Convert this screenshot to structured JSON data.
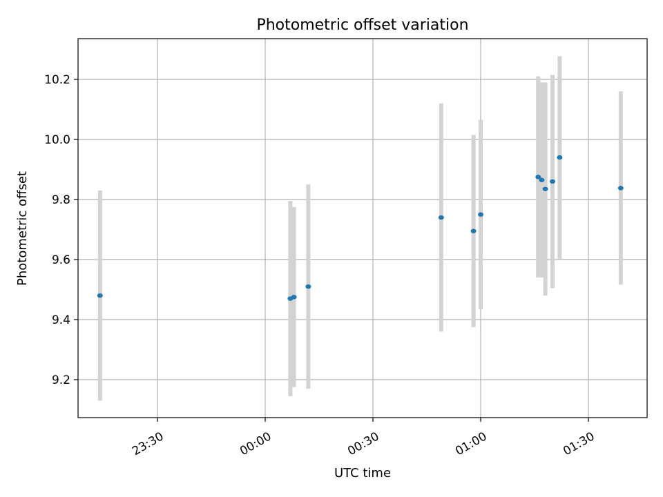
{
  "chart_data": {
    "type": "scatter",
    "title": "Photometric offset variation",
    "xlabel": "UTC time",
    "ylabel": "Photometric offset",
    "x_axis_kind": "time",
    "x_tick_labels": [
      "23:30",
      "00:00",
      "00:30",
      "01:00",
      "01:30"
    ],
    "y_tick_labels": [
      "9.2",
      "9.4",
      "9.6",
      "9.8",
      "10.0",
      "10.2"
    ],
    "grid": true,
    "colors": {
      "point": "#1f77b4",
      "errorbar": "#d3d3d3",
      "grid": "#b0b0b0"
    },
    "series": [
      {
        "points": [
          {
            "x": "23:14",
            "y": 9.48,
            "yerr": 0.35
          },
          {
            "x": "00:07",
            "y": 9.47,
            "yerr": 0.325
          },
          {
            "x": "00:08",
            "y": 9.475,
            "yerr": 0.3
          },
          {
            "x": "00:12",
            "y": 9.51,
            "yerr": 0.34
          },
          {
            "x": "00:49",
            "y": 9.74,
            "yerr": 0.38
          },
          {
            "x": "00:58",
            "y": 9.695,
            "yerr": 0.32
          },
          {
            "x": "01:00",
            "y": 9.75,
            "yerr": 0.315
          },
          {
            "x": "01:16",
            "y": 9.875,
            "yerr": 0.335
          },
          {
            "x": "01:17",
            "y": 9.865,
            "yerr": 0.325
          },
          {
            "x": "01:18",
            "y": 9.835,
            "yerr": 0.355
          },
          {
            "x": "01:20",
            "y": 9.86,
            "yerr": 0.355
          },
          {
            "x": "01:22",
            "y": 9.94,
            "yerr": 0.337
          },
          {
            "x": "01:39",
            "y": 9.838,
            "yerr": 0.322
          }
        ]
      }
    ]
  }
}
